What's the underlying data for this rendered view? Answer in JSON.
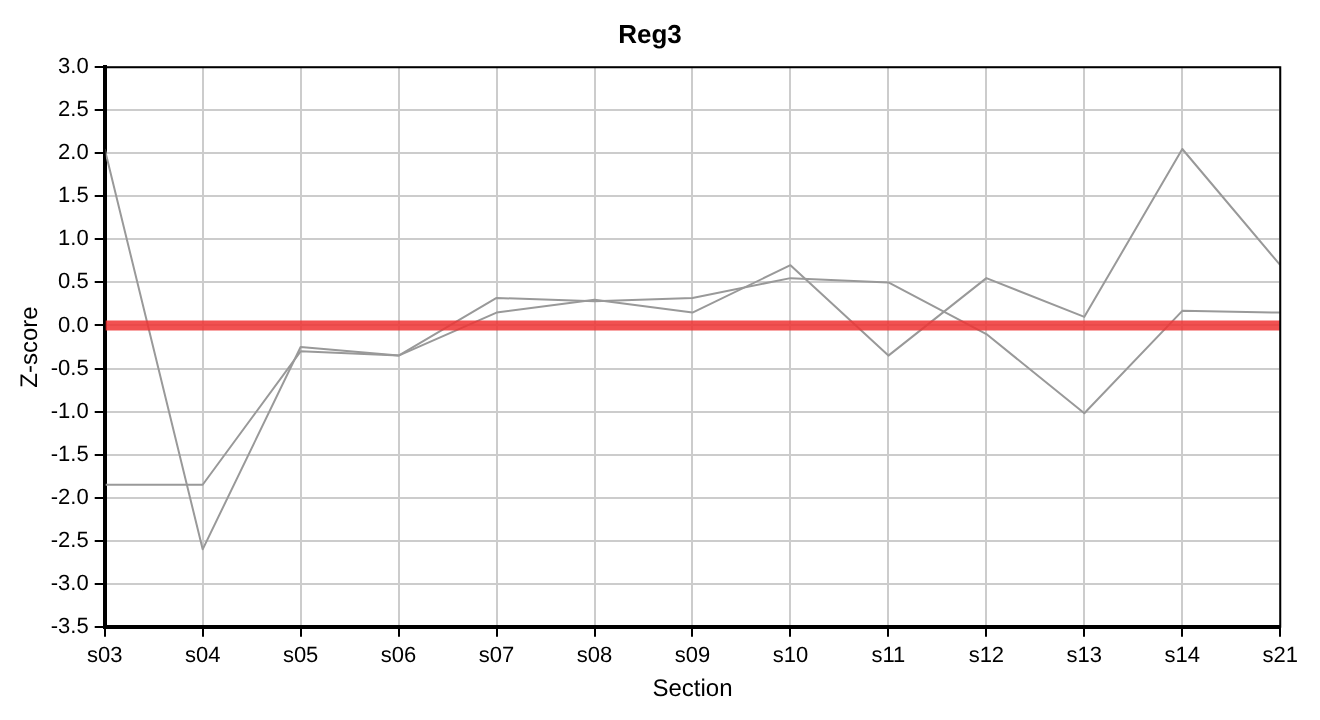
{
  "chart_data": {
    "type": "line",
    "title": "Reg3",
    "xlabel": "Section",
    "ylabel": "Z-score",
    "categories": [
      "s03",
      "s04",
      "s05",
      "s06",
      "s07",
      "s08",
      "s09",
      "s10",
      "s11",
      "s12",
      "s13",
      "s14",
      "s21"
    ],
    "series": [
      {
        "color": "#999999",
        "values": [
          2.05,
          -2.6,
          -0.25,
          -0.35,
          0.15,
          0.3,
          0.15,
          0.7,
          -0.35,
          0.55,
          0.1,
          2.05,
          0.7
        ]
      },
      {
        "color": "#999999",
        "values": [
          -1.85,
          -1.85,
          -0.3,
          -0.35,
          0.32,
          0.28,
          0.32,
          0.55,
          0.5,
          -0.1,
          -1.02,
          0.17,
          0.15
        ]
      }
    ],
    "ylim": [
      -3.5,
      3
    ],
    "yticks": [
      -3.5,
      {
        "value": -3,
        "label": "-3.0"
      },
      -2.5,
      {
        "value": -2,
        "label": "-2.0"
      },
      -1.5,
      {
        "value": -1,
        "label": "-1.0"
      },
      -0.5,
      {
        "value": 0,
        "label": "0.0"
      },
      0.5,
      {
        "value": 1,
        "label": "1.0"
      },
      1.5,
      {
        "value": 2,
        "label": "2.0"
      },
      2.5,
      {
        "value": 3,
        "label": "3.0"
      }
    ],
    "grid": true,
    "legend": false,
    "marker": "none",
    "line_style": "solid",
    "ref_lines": [
      {
        "axis": "y",
        "value": 0,
        "color": "#ee3333"
      }
    ]
  }
}
